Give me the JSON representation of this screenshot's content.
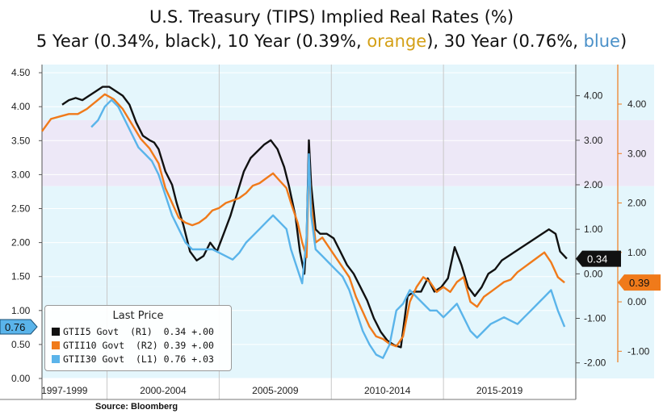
{
  "title": "U.S. Treasury (TIPS) Implied Real Rates (%)",
  "subtitle": {
    "part1": "5 Year (0.34%, black), 10 Year (0.39%, ",
    "orange_word": "orange",
    "part2": "), 30 Year (0.76%, ",
    "blue_word": "blue",
    "part3": ")"
  },
  "source": "Source: Bloomberg",
  "legend": {
    "title": "Last Price",
    "items": [
      {
        "label": "GTII5 Govt  (R1)  0.34 +.00",
        "color": "#111111"
      },
      {
        "label": "GTII10 Govt  (R2) 0.39 +.00",
        "color": "#f07a1a"
      },
      {
        "label": "GTII30 Govt  (L1) 0.76 +.03",
        "color": "#5ab4ea"
      }
    ]
  },
  "colors": {
    "black_series": "#111111",
    "orange_series": "#f07a1a",
    "blue_series": "#5ab4ea",
    "band_light_blue": "#e4f6fc",
    "band_lavender": "#ede8f7",
    "subtitle_orange": "#d4a017",
    "subtitle_blue": "#4a90c8"
  },
  "chart_data": {
    "type": "line",
    "x_range": [
      1997.0,
      2020.8
    ],
    "x_ticks": [
      {
        "label": "1997-1999",
        "at": 1998.0
      },
      {
        "label": "2000-2004",
        "at": 2002.4
      },
      {
        "label": "2005-2009",
        "at": 2007.4
      },
      {
        "label": "2010-2014",
        "at": 2012.4
      },
      {
        "label": "2015-2019",
        "at": 2017.4
      }
    ],
    "x_dividers": [
      1999.9,
      2004.9,
      2009.9,
      2014.9
    ],
    "axes": {
      "left": {
        "min": 0.0,
        "max": 4.62,
        "ticks": [
          "0.00",
          "0.50",
          "1.00",
          "1.50",
          "2.00",
          "2.50",
          "3.00",
          "3.50",
          "4.00",
          "4.50"
        ],
        "tick_values": [
          0,
          0.5,
          1,
          1.5,
          2,
          2.5,
          3,
          3.5,
          4,
          4.5
        ]
      },
      "right1": {
        "min": -2.35,
        "max": 4.7,
        "ticks": [
          "-2.00",
          "-1.00",
          "0.00",
          "1.00",
          "2.00",
          "3.00",
          "4.00"
        ],
        "tick_values": [
          -2,
          -1,
          0,
          1,
          2,
          3,
          4
        ]
      },
      "right2": {
        "min": -1.55,
        "max": 4.8,
        "ticks": [
          "-1.00",
          "0.00",
          "1.00",
          "2.00",
          "3.00",
          "4.00"
        ],
        "tick_values": [
          -1,
          0,
          1,
          2,
          3,
          4
        ]
      }
    },
    "last_value_labels": {
      "left": "0.76",
      "right1": "0.34",
      "right2": "0.39"
    },
    "series": [
      {
        "name": "GTII5 Govt (R1)",
        "axis": "right1",
        "color": "#111111",
        "x": [
          1997.9,
          1998.2,
          1998.5,
          1998.8,
          1999.1,
          1999.4,
          1999.7,
          2000.0,
          2000.3,
          2000.6,
          2000.9,
          2001.2,
          2001.5,
          2001.8,
          2002.0,
          2002.2,
          2002.5,
          2002.8,
          2003.0,
          2003.3,
          2003.6,
          2003.9,
          2004.2,
          2004.5,
          2004.8,
          2005.1,
          2005.4,
          2005.7,
          2006.0,
          2006.3,
          2006.6,
          2006.9,
          2007.2,
          2007.5,
          2007.8,
          2008.0,
          2008.3,
          2008.5,
          2008.7,
          2008.8,
          2008.9,
          2009.0,
          2009.2,
          2009.4,
          2009.7,
          2010.0,
          2010.3,
          2010.6,
          2010.9,
          2011.2,
          2011.5,
          2011.8,
          2012.1,
          2012.4,
          2012.7,
          2013.0,
          2013.3,
          2013.6,
          2013.9,
          2014.2,
          2014.5,
          2014.8,
          2015.1,
          2015.4,
          2015.7,
          2016.0,
          2016.3,
          2016.6,
          2016.9,
          2017.2,
          2017.5,
          2017.8,
          2018.1,
          2018.4,
          2018.7,
          2019.0,
          2019.3,
          2019.6,
          2019.9,
          2020.1,
          2020.4
        ],
        "y": [
          3.8,
          3.9,
          3.95,
          3.9,
          4.0,
          4.1,
          4.2,
          4.2,
          4.1,
          4.0,
          3.8,
          3.4,
          3.1,
          3.0,
          2.95,
          2.8,
          2.3,
          2.0,
          1.6,
          1.1,
          0.5,
          0.3,
          0.4,
          0.7,
          0.5,
          0.9,
          1.3,
          1.8,
          2.3,
          2.6,
          2.75,
          2.9,
          3.0,
          2.8,
          2.4,
          2.0,
          1.3,
          0.5,
          0.0,
          0.8,
          3.0,
          2.0,
          1.0,
          0.9,
          0.9,
          0.8,
          0.5,
          0.2,
          0.0,
          -0.3,
          -0.6,
          -1.0,
          -1.3,
          -1.5,
          -1.6,
          -1.65,
          -0.5,
          -0.4,
          -0.4,
          -0.1,
          -0.4,
          -0.3,
          -0.1,
          0.6,
          0.2,
          -0.3,
          -0.5,
          -0.3,
          0.0,
          0.1,
          0.3,
          0.4,
          0.5,
          0.6,
          0.7,
          0.8,
          0.9,
          1.0,
          0.9,
          0.5,
          0.34
        ]
      },
      {
        "name": "GTII10 Govt (R2)",
        "axis": "right2",
        "color": "#f07a1a",
        "x": [
          1997.0,
          1997.4,
          1997.8,
          1998.2,
          1998.6,
          1999.0,
          1999.4,
          1999.8,
          2000.2,
          2000.6,
          2001.0,
          2001.4,
          2001.8,
          2002.2,
          2002.5,
          2002.8,
          2003.1,
          2003.4,
          2003.7,
          2004.0,
          2004.3,
          2004.6,
          2004.9,
          2005.2,
          2005.5,
          2005.8,
          2006.1,
          2006.4,
          2006.7,
          2007.0,
          2007.3,
          2007.6,
          2007.9,
          2008.1,
          2008.4,
          2008.6,
          2008.8,
          2008.9,
          2009.0,
          2009.2,
          2009.5,
          2009.8,
          2010.1,
          2010.4,
          2010.7,
          2011.0,
          2011.3,
          2011.6,
          2011.9,
          2012.2,
          2012.5,
          2012.8,
          2013.1,
          2013.4,
          2013.7,
          2014.0,
          2014.3,
          2014.6,
          2014.9,
          2015.2,
          2015.5,
          2015.8,
          2016.1,
          2016.4,
          2016.7,
          2017.0,
          2017.3,
          2017.6,
          2017.9,
          2018.2,
          2018.5,
          2018.8,
          2019.1,
          2019.4,
          2019.7,
          2020.0,
          2020.3
        ],
        "y": [
          3.45,
          3.7,
          3.75,
          3.8,
          3.8,
          3.9,
          4.05,
          4.2,
          4.1,
          3.9,
          3.6,
          3.3,
          3.1,
          2.8,
          2.3,
          2.0,
          1.7,
          1.6,
          1.55,
          1.6,
          1.7,
          1.85,
          1.9,
          2.0,
          2.05,
          2.1,
          2.2,
          2.35,
          2.4,
          2.5,
          2.6,
          2.45,
          2.3,
          2.0,
          1.6,
          1.2,
          0.9,
          2.8,
          2.0,
          1.2,
          1.3,
          1.1,
          0.9,
          0.7,
          0.5,
          0.1,
          -0.2,
          -0.5,
          -0.7,
          -0.75,
          -0.85,
          -0.9,
          -0.7,
          0.0,
          0.3,
          0.5,
          0.4,
          0.2,
          0.3,
          0.2,
          0.4,
          0.5,
          0.0,
          -0.1,
          0.1,
          0.2,
          0.3,
          0.4,
          0.45,
          0.6,
          0.7,
          0.8,
          0.9,
          1.0,
          0.8,
          0.5,
          0.39
        ]
      },
      {
        "name": "GTII30 Govt (L1)",
        "axis": "left",
        "color": "#5ab4ea",
        "x": [
          1999.2,
          1999.5,
          1999.8,
          2000.1,
          2000.4,
          2000.7,
          2001.0,
          2001.3,
          2001.6,
          2001.9,
          2002.2,
          2002.5,
          2002.8,
          2003.1,
          2003.4,
          2003.7,
          2004.0,
          2004.3,
          2004.6,
          2004.9,
          2005.2,
          2005.5,
          2005.8,
          2006.1,
          2006.4,
          2006.7,
          2007.0,
          2007.3,
          2007.6,
          2007.9,
          2008.1,
          2008.4,
          2008.6,
          2008.8,
          2008.9,
          2009.0,
          2009.2,
          2009.5,
          2009.8,
          2010.1,
          2010.4,
          2010.7,
          2011.0,
          2011.3,
          2011.6,
          2011.9,
          2012.2,
          2012.5,
          2012.8,
          2013.1,
          2013.4,
          2013.7,
          2014.0,
          2014.3,
          2014.6,
          2014.9,
          2015.2,
          2015.5,
          2015.8,
          2016.1,
          2016.4,
          2016.7,
          2017.0,
          2017.3,
          2017.6,
          2017.9,
          2018.2,
          2018.5,
          2018.8,
          2019.1,
          2019.4,
          2019.7,
          2020.0,
          2020.3
        ],
        "y": [
          3.7,
          3.8,
          4.0,
          4.1,
          4.0,
          3.8,
          3.6,
          3.4,
          3.3,
          3.2,
          3.0,
          2.7,
          2.4,
          2.2,
          2.0,
          1.9,
          1.9,
          1.9,
          1.9,
          1.85,
          1.8,
          1.75,
          1.85,
          2.0,
          2.1,
          2.2,
          2.3,
          2.4,
          2.3,
          2.2,
          1.9,
          1.6,
          1.4,
          2.1,
          3.3,
          2.4,
          1.9,
          1.8,
          1.7,
          1.6,
          1.5,
          1.3,
          1.0,
          0.7,
          0.5,
          0.35,
          0.3,
          0.5,
          1.0,
          1.1,
          1.3,
          1.2,
          1.1,
          1.0,
          1.0,
          0.9,
          1.0,
          1.1,
          0.9,
          0.7,
          0.6,
          0.7,
          0.8,
          0.85,
          0.9,
          0.85,
          0.8,
          0.9,
          1.0,
          1.1,
          1.2,
          1.3,
          1.0,
          0.76
        ]
      }
    ]
  }
}
